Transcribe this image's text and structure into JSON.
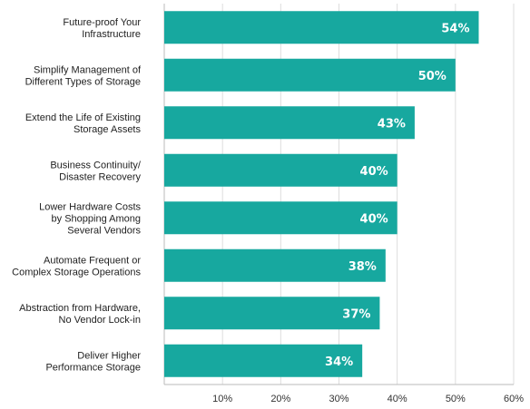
{
  "chart_data": {
    "type": "bar",
    "orientation": "horizontal",
    "categories": [
      [
        "Future-proof Your",
        "Infrastructure"
      ],
      [
        "Simplify Management of",
        "Different Types of Storage"
      ],
      [
        "Extend the Life of Existing",
        "Storage Assets"
      ],
      [
        "Business Continuity/",
        "Disaster Recovery"
      ],
      [
        "Lower Hardware Costs",
        "by Shopping Among",
        "Several Vendors"
      ],
      [
        "Automate Frequent or",
        "Complex Storage Operations"
      ],
      [
        "Abstraction from Hardware,",
        "No Vendor Lock-in"
      ],
      [
        "Deliver Higher",
        "Performance Storage"
      ]
    ],
    "values": [
      54,
      50,
      43,
      40,
      40,
      38,
      37,
      34
    ],
    "value_labels": [
      "54%",
      "50%",
      "43%",
      "40%",
      "40%",
      "38%",
      "37%",
      "34%"
    ],
    "x_ticks": [
      10,
      20,
      30,
      40,
      50,
      60
    ],
    "x_tick_labels": [
      "10%",
      "20%",
      "30%",
      "40%",
      "50%",
      "60%"
    ],
    "xlim": [
      0,
      60
    ],
    "grid": true,
    "bar_color": "#17a89f",
    "title": "",
    "xlabel": "",
    "ylabel": ""
  }
}
